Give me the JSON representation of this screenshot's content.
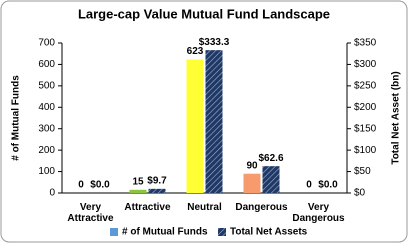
{
  "chart_data": {
    "type": "bar",
    "title": "Large-cap Value Mutual Fund Landscape",
    "categories": [
      "Very Attractive",
      "Attractive",
      "Neutral",
      "Dangerous",
      "Very Dangerous"
    ],
    "series": [
      {
        "name": "# of Mutual Funds",
        "color": "#5b9bd5",
        "colors": [
          "#5b9bd5",
          "#8cc43f",
          "#ffff33",
          "#f79a6e",
          "#5b9bd5"
        ],
        "values": [
          0,
          15,
          623,
          90,
          0
        ]
      },
      {
        "name": "Total Net Assets",
        "color": "#1f3864",
        "axis": "y2",
        "values": [
          0,
          9.7,
          333.3,
          62.6,
          0
        ],
        "value_labels": [
          "$0.0",
          "$9.7",
          "$333.3",
          "$62.6",
          "$0.0"
        ]
      }
    ],
    "ylabel": "# of Mutual Funds",
    "y2label": "Total Net Asset (bn)",
    "ylim": [
      0,
      700
    ],
    "yticks": [
      0,
      100,
      200,
      300,
      400,
      500,
      600,
      700
    ],
    "y2lim": [
      0,
      350
    ],
    "y2ticks": [
      {
        "value": 0,
        "label": "$0"
      },
      {
        "value": 50,
        "label": "$50"
      },
      {
        "value": 100,
        "label": "$100"
      },
      {
        "value": 150,
        "label": "$150"
      },
      {
        "value": 200,
        "label": "$200"
      },
      {
        "value": 250,
        "label": "$250"
      },
      {
        "value": 300,
        "label": "$300"
      },
      {
        "value": 350,
        "label": "$350"
      }
    ],
    "grid": false,
    "legend": "bottom"
  }
}
